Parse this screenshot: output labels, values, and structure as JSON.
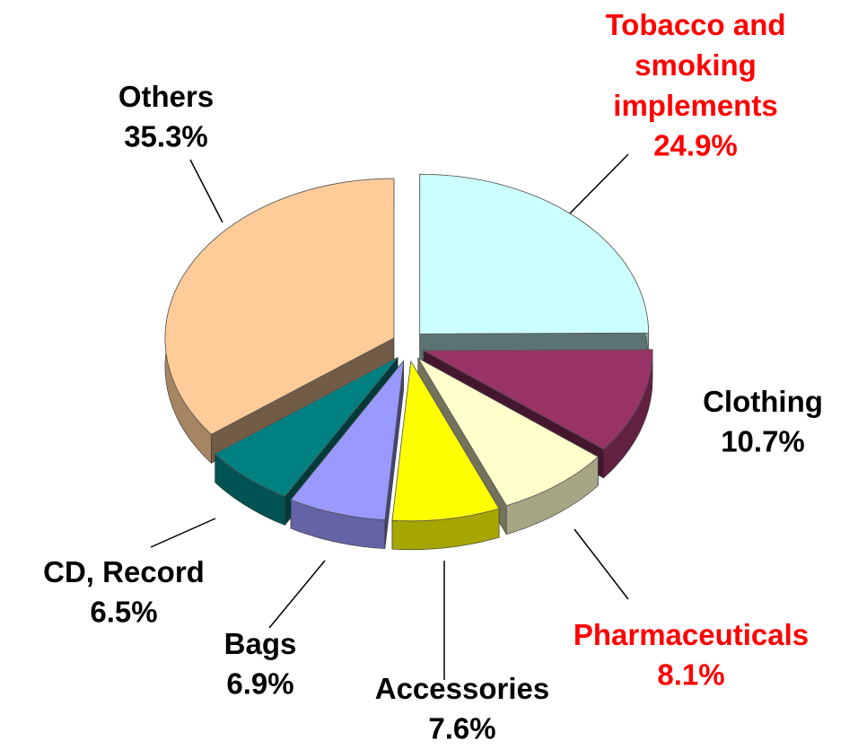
{
  "chart_data": {
    "type": "pie",
    "categories": [
      "Tobacco and smoking implements",
      "Clothing",
      "Pharmaceuticals",
      "Accessories",
      "Bags",
      "CD, Record",
      "Others"
    ],
    "values": [
      24.9,
      10.7,
      8.1,
      7.6,
      6.9,
      6.5,
      35.3
    ],
    "value_labels": [
      "24.9%",
      "10.7%",
      "8.1%",
      "7.6%",
      "6.9%",
      "6.5%",
      "35.3%"
    ],
    "colors": [
      "#ccffff",
      "#993366",
      "#ffffcc",
      "#ffff00",
      "#9999ff",
      "#008080",
      "#ffcc99"
    ],
    "label_colors": [
      "#ff0000",
      "#000000",
      "#ff0000",
      "#000000",
      "#000000",
      "#000000",
      "#000000"
    ]
  }
}
